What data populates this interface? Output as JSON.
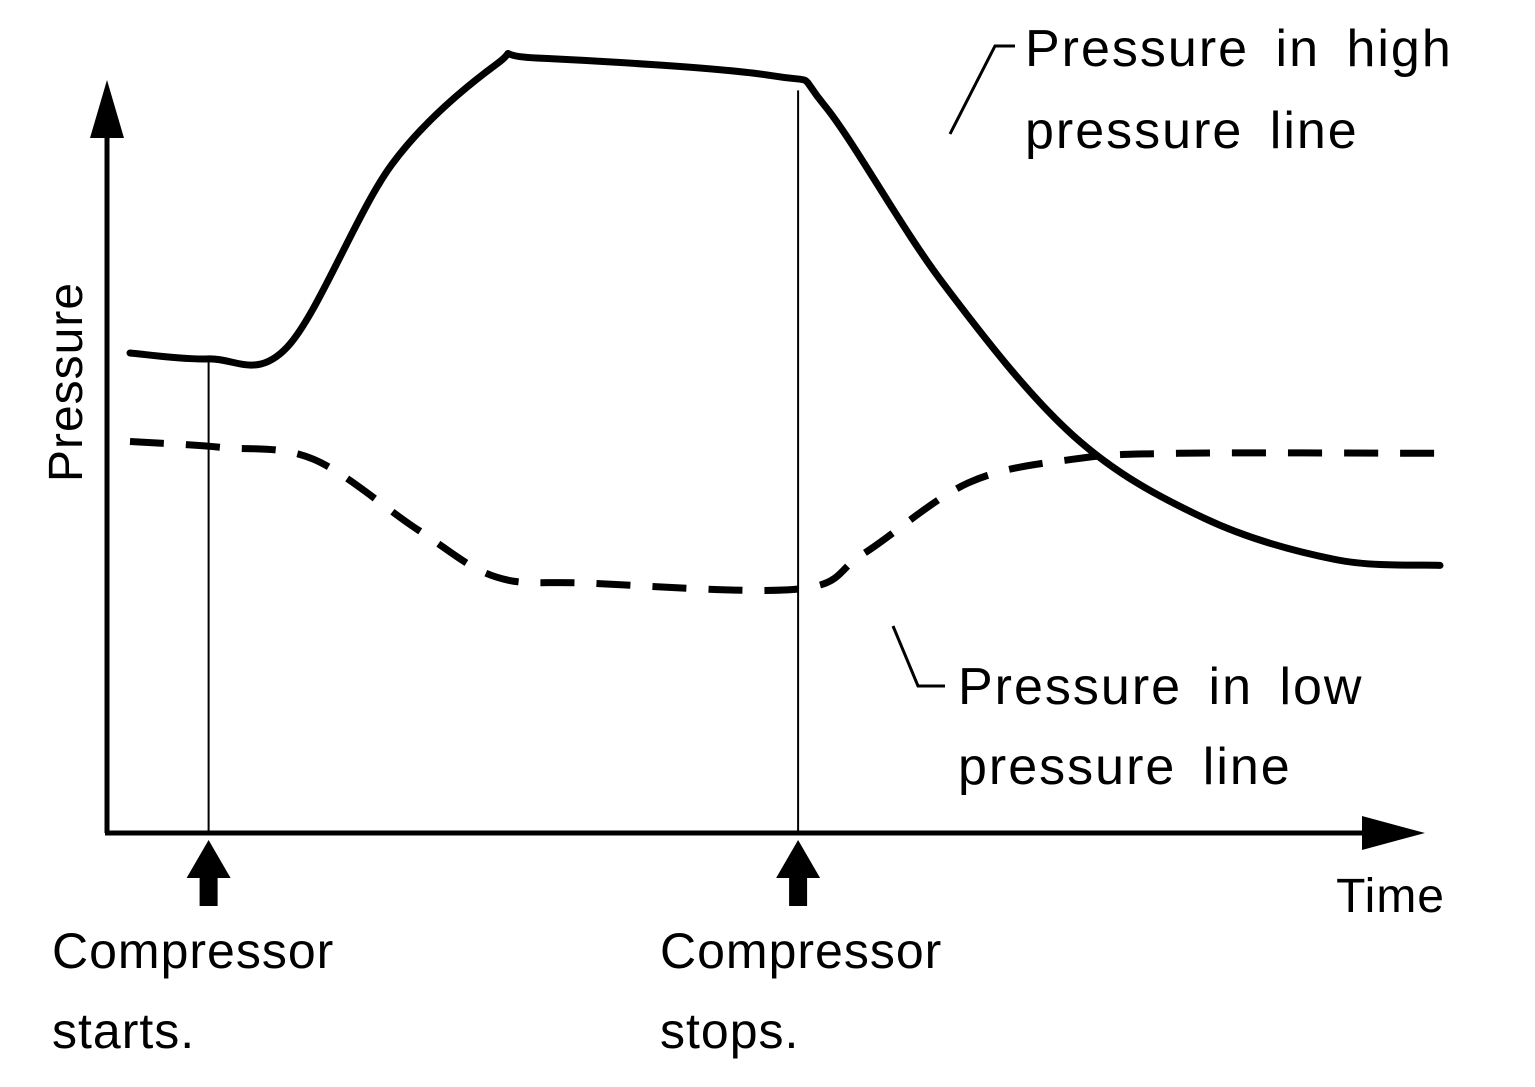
{
  "chart_data": {
    "type": "line",
    "title": "",
    "xlabel": "Time",
    "ylabel": "Pressure",
    "grid": false,
    "axis_ticks": false,
    "series": [
      {
        "name_lines": [
          "Pressure in high",
          "pressure line"
        ],
        "style": "solid",
        "points": [
          [
            0.0,
            0.5
          ],
          [
            0.06,
            0.49
          ],
          [
            0.12,
            0.51
          ],
          [
            0.2,
            0.82
          ],
          [
            0.28,
            0.99
          ],
          [
            0.31,
            1.0
          ],
          [
            0.49,
            0.97
          ],
          [
            0.53,
            0.92
          ],
          [
            0.62,
            0.62
          ],
          [
            0.72,
            0.36
          ],
          [
            0.82,
            0.22
          ],
          [
            0.92,
            0.15
          ],
          [
            1.0,
            0.14
          ]
        ]
      },
      {
        "name_lines": [
          "Pressure in low",
          "pressure line"
        ],
        "style": "dashed",
        "points": [
          [
            0.0,
            0.35
          ],
          [
            0.07,
            0.34
          ],
          [
            0.14,
            0.32
          ],
          [
            0.22,
            0.2
          ],
          [
            0.28,
            0.12
          ],
          [
            0.35,
            0.11
          ],
          [
            0.51,
            0.1
          ],
          [
            0.56,
            0.16
          ],
          [
            0.64,
            0.28
          ],
          [
            0.72,
            0.32
          ],
          [
            0.8,
            0.33
          ],
          [
            1.0,
            0.33
          ]
        ]
      }
    ],
    "events": [
      {
        "x": 0.06,
        "label_lines": [
          "Compressor",
          "starts."
        ]
      },
      {
        "x": 0.51,
        "label_lines": [
          "Compressor",
          "stops."
        ]
      }
    ]
  }
}
